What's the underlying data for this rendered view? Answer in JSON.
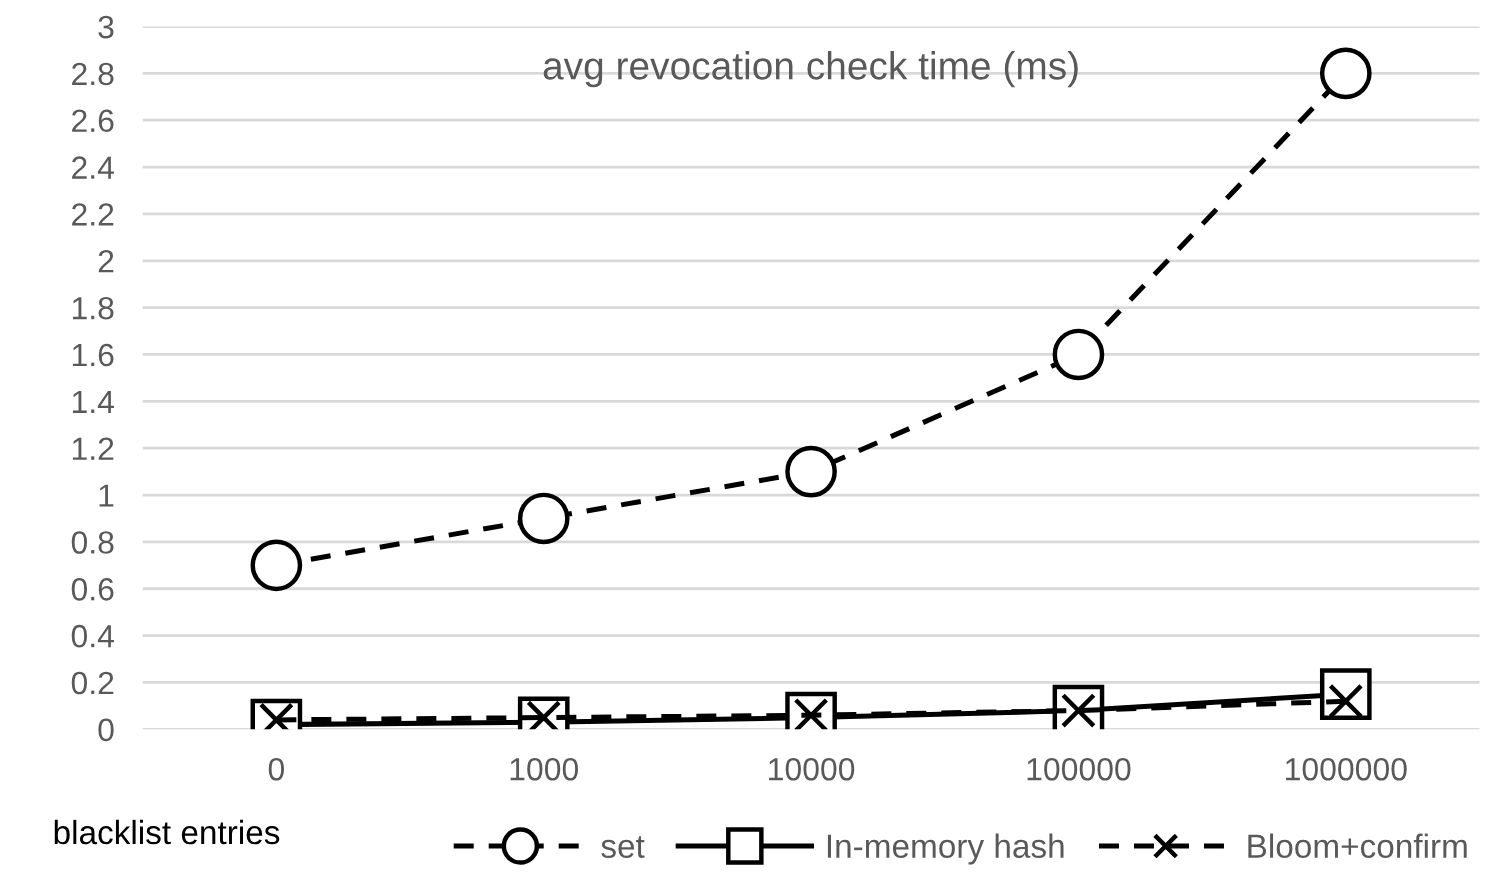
{
  "chart_data": {
    "type": "line",
    "title": "avg revocation check time (ms)",
    "xlabel": "blacklist entries",
    "categories": [
      "0",
      "1000",
      "10000",
      "100000",
      "1000000"
    ],
    "series": [
      {
        "name": "set",
        "color": "#000000",
        "values": [
          0.7,
          0.9,
          1.1,
          1.6,
          2.8
        ],
        "marker": "circle",
        "line_style": "dashed"
      },
      {
        "name": "In-memory hash",
        "color": "#000000",
        "values": [
          0.02,
          0.03,
          0.05,
          0.08,
          0.15
        ],
        "marker": "square",
        "line_style": "solid"
      },
      {
        "name": "Bloom+confirm",
        "color": "#000000",
        "values": [
          0.04,
          0.05,
          0.06,
          0.08,
          0.12
        ],
        "marker": "cross",
        "line_style": "dashed"
      }
    ],
    "ylim": [
      0,
      3
    ],
    "yticks": [
      0,
      {
        "value": 0.2,
        "label": "0.2"
      },
      {
        "value": 0.4,
        "label": "0.4"
      },
      {
        "value": 0.6,
        "label": "0.6"
      },
      {
        "value": 0.8,
        "label": "0.8"
      },
      1,
      {
        "value": 1.2,
        "label": "1.2"
      },
      {
        "value": 1.4,
        "label": "1.4"
      },
      {
        "value": 1.6,
        "label": "1.6"
      },
      {
        "value": 1.8,
        "label": "1.8"
      },
      2,
      {
        "value": 2.2,
        "label": "2.2"
      },
      {
        "value": 2.4,
        "label": "2.4"
      },
      {
        "value": 2.6,
        "label": "2.6"
      },
      {
        "value": 2.8,
        "label": "2.8"
      },
      3
    ],
    "grid": "y",
    "legend": "bottom"
  }
}
